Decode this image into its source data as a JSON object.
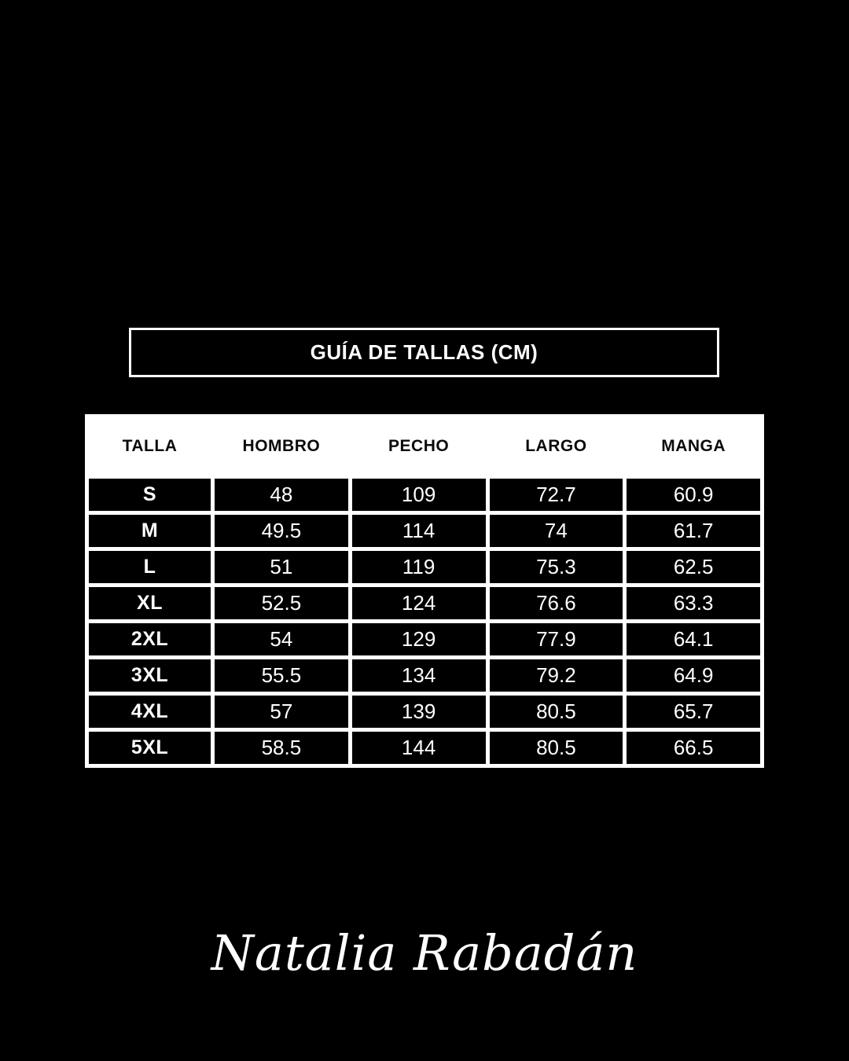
{
  "colors": {
    "background": "#000000",
    "foreground": "#ffffff",
    "table_grid": "#ffffff",
    "cell_background": "#000000",
    "header_text": "#0b0b0b"
  },
  "title": "GUÍA DE TALLAS (CM)",
  "size_table": {
    "columns": [
      "TALLA",
      "HOMBRO",
      "PECHO",
      "LARGO",
      "MANGA"
    ],
    "rows": [
      [
        "S",
        "48",
        "109",
        "72.7",
        "60.9"
      ],
      [
        "M",
        "49.5",
        "114",
        "74",
        "61.7"
      ],
      [
        "L",
        "51",
        "119",
        "75.3",
        "62.5"
      ],
      [
        "XL",
        "52.5",
        "124",
        "76.6",
        "63.3"
      ],
      [
        "2XL",
        "54",
        "129",
        "77.9",
        "64.1"
      ],
      [
        "3XL",
        "55.5",
        "134",
        "79.2",
        "64.9"
      ],
      [
        "4XL",
        "57",
        "139",
        "80.5",
        "65.7"
      ],
      [
        "5XL",
        "58.5",
        "144",
        "80.5",
        "66.5"
      ]
    ]
  },
  "signature": "Natalia Rabadán",
  "chart_data": {
    "type": "table",
    "title": "GUÍA DE TALLAS (CM)",
    "units": "cm",
    "columns": [
      "TALLA",
      "HOMBRO",
      "PECHO",
      "LARGO",
      "MANGA"
    ],
    "rows": [
      [
        "S",
        48,
        109,
        72.7,
        60.9
      ],
      [
        "M",
        49.5,
        114,
        74,
        61.7
      ],
      [
        "L",
        51,
        119,
        75.3,
        62.5
      ],
      [
        "XL",
        52.5,
        124,
        76.6,
        63.3
      ],
      [
        "2XL",
        54,
        129,
        77.9,
        64.1
      ],
      [
        "3XL",
        55.5,
        134,
        79.2,
        64.9
      ],
      [
        "4XL",
        57,
        139,
        80.5,
        65.7
      ],
      [
        "5XL",
        58.5,
        144,
        80.5,
        66.5
      ]
    ]
  }
}
